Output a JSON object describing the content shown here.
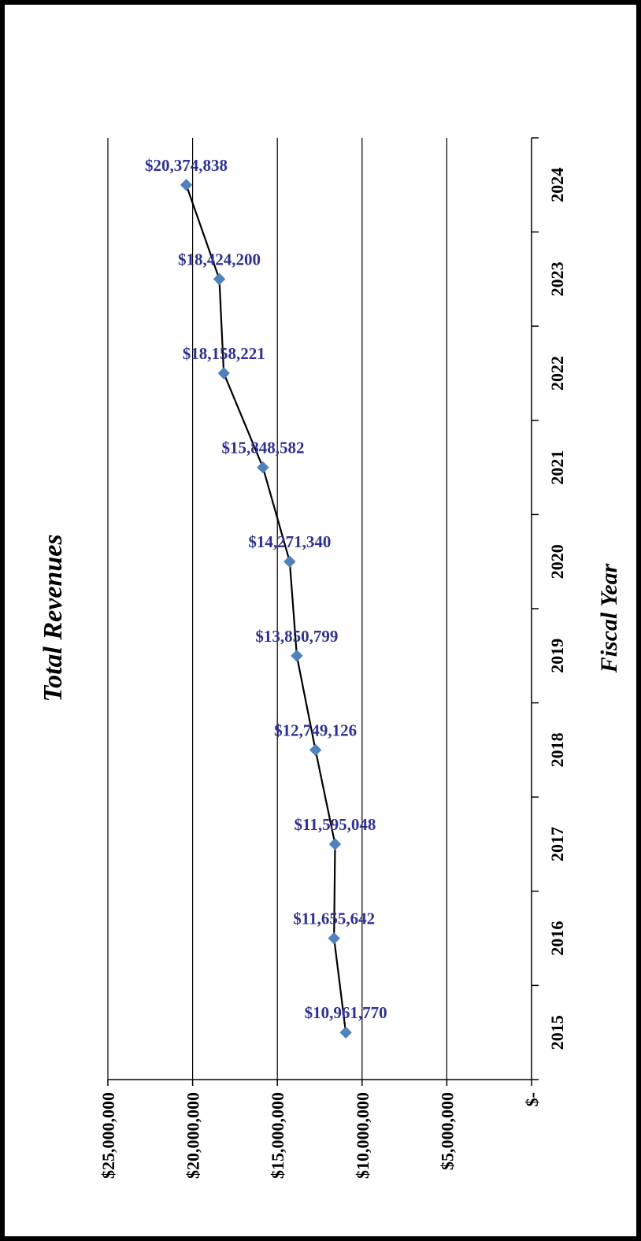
{
  "chart_data": {
    "type": "line",
    "title": "Total Revenues",
    "xlabel": "Fiscal Year",
    "ylabel": "",
    "categories": [
      "2015",
      "2016",
      "2017",
      "2018",
      "2019",
      "2020",
      "2021",
      "2022",
      "2023",
      "2024"
    ],
    "values": [
      10961770,
      11655642,
      11595048,
      12749126,
      13850799,
      14271340,
      15848582,
      18158221,
      18424200,
      20374838
    ],
    "data_labels": [
      "$10,961,770",
      "$11,655,642",
      "$11,595,048",
      "$12,749,126",
      "$13,850,799",
      "$14,271,340",
      "$15,848,582",
      "$18,158,221",
      "$18,424,200",
      "$20,374,838"
    ],
    "y_tick_values": [
      0,
      5000000,
      10000000,
      15000000,
      20000000,
      25000000
    ],
    "y_tick_labels": [
      "$-",
      "$5,000,000",
      "$10,000,000",
      "$15,000,000",
      "$20,000,000",
      "$25,000,000"
    ],
    "ylim": [
      0,
      25000000
    ],
    "grid": true,
    "orientation": "rotated 90 degrees counter-clockwise",
    "legend": "none",
    "colors": {
      "line": "#000000",
      "marker": "#4f81bd",
      "label": "#2e3192",
      "grid": "#000000",
      "border": "#000000"
    }
  }
}
